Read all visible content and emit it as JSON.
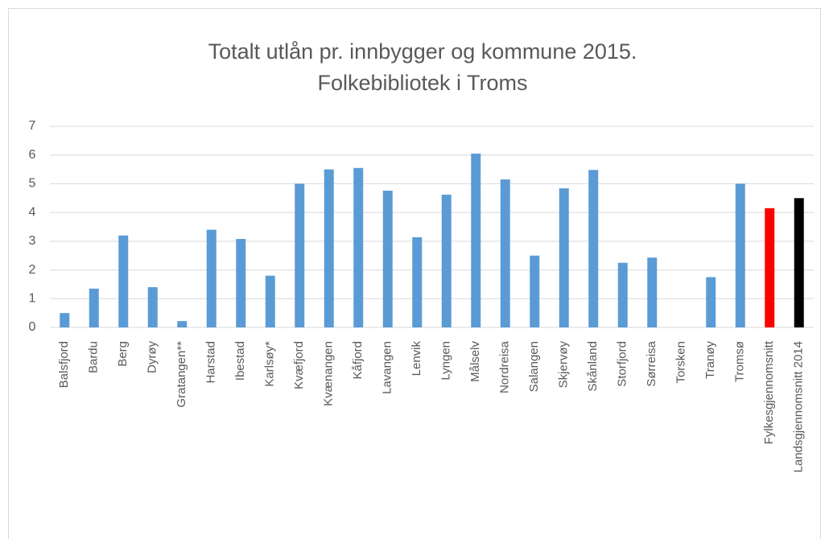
{
  "chart_data": {
    "type": "bar",
    "title": [
      "Totalt utlån pr. innbygger og kommune 2015.",
      "Folkebibliotek i Troms"
    ],
    "categories": [
      "Balsfjord",
      "Bardu",
      "Berg",
      "Dyrøy",
      "Gratangen**",
      "Harstad",
      "Ibestad",
      "Karlsøy*",
      "Kvæfjord",
      "Kvænangen",
      "Kåfjord",
      "Lavangen",
      "Lenvik",
      "Lyngen",
      "Målselv",
      "Nordreisa",
      "Salangen",
      "Skjervøy",
      "Skånland",
      "Storfjord",
      "Sørreisa",
      "Torsken",
      "Tranøy",
      "Tromsø",
      "Fylkesgjennomsnitt",
      "Landsgjennomsnitt 2014"
    ],
    "values": [
      0.5,
      1.35,
      3.2,
      1.4,
      0.22,
      3.4,
      3.08,
      1.8,
      5.0,
      5.5,
      5.55,
      4.76,
      3.14,
      4.62,
      6.05,
      5.15,
      2.5,
      4.84,
      5.48,
      2.25,
      2.43,
      null,
      1.75,
      5.0,
      4.15,
      4.5
    ],
    "colors": [
      "#5b9bd5",
      "#5b9bd5",
      "#5b9bd5",
      "#5b9bd5",
      "#5b9bd5",
      "#5b9bd5",
      "#5b9bd5",
      "#5b9bd5",
      "#5b9bd5",
      "#5b9bd5",
      "#5b9bd5",
      "#5b9bd5",
      "#5b9bd5",
      "#5b9bd5",
      "#5b9bd5",
      "#5b9bd5",
      "#5b9bd5",
      "#5b9bd5",
      "#5b9bd5",
      "#5b9bd5",
      "#5b9bd5",
      "#5b9bd5",
      "#5b9bd5",
      "#5b9bd5",
      "#ff0000",
      "#000000"
    ],
    "ylim": [
      0,
      7
    ],
    "yticks": [
      0,
      1,
      2,
      3,
      4,
      5,
      6,
      7
    ],
    "grid": true
  }
}
